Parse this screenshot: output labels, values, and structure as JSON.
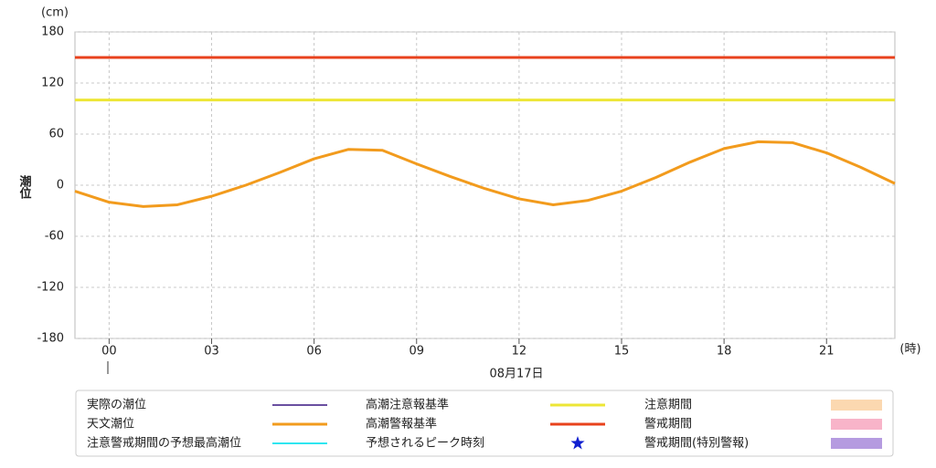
{
  "chart_data": {
    "type": "line",
    "y_label": "潮位",
    "y_unit": "(cm)",
    "x_unit": "(時)",
    "date_label": "08月17日",
    "x": [
      -1,
      0,
      1,
      2,
      3,
      4,
      5,
      6,
      7,
      8,
      9,
      10,
      11,
      12,
      13,
      14,
      15,
      16,
      17,
      18,
      19,
      20,
      21,
      22,
      23
    ],
    "series": [
      {
        "name": "天文潮位",
        "color": "#f29b1d",
        "values": [
          -7,
          -20,
          -25,
          -23,
          -13,
          0,
          15,
          31,
          42,
          41,
          25,
          10,
          -4,
          -16,
          -23,
          -18,
          -7,
          9,
          27,
          43,
          51,
          50,
          38,
          21,
          2
        ]
      }
    ],
    "thresholds": [
      {
        "name": "高潮注意報基準",
        "color": "#ede636",
        "value": 100
      },
      {
        "name": "高潮警報基準",
        "color": "#e8421c",
        "value": 150
      }
    ],
    "legend_extra": [
      {
        "name": "実際の潮位",
        "color": "#6a4fa0",
        "symbol": "line"
      },
      {
        "name": "注意警戒期間の予想最高潮位",
        "color": "#2ee6f0",
        "symbol": "line"
      },
      {
        "name": "予想されるピーク時刻",
        "color": "#1020d0",
        "symbol": "star"
      },
      {
        "name": "注意期間",
        "color": "#fbd8b0",
        "symbol": "rect"
      },
      {
        "name": "警戒期間",
        "color": "#f8b4c9",
        "symbol": "rect"
      },
      {
        "name": "警戒期間(特別警報)",
        "color": "#b59be0",
        "symbol": "rect"
      }
    ],
    "xlim": [
      -1,
      23
    ],
    "xticks": [
      {
        "value": 0,
        "label": "00"
      },
      {
        "value": 3,
        "label": "03"
      },
      {
        "value": 6,
        "label": "06"
      },
      {
        "value": 9,
        "label": "09"
      },
      {
        "value": 12,
        "label": "12"
      },
      {
        "value": 15,
        "label": "15"
      },
      {
        "value": 18,
        "label": "18"
      },
      {
        "value": 21,
        "label": "21"
      }
    ],
    "ylim": [
      -180,
      180
    ],
    "yticks": [
      -180,
      -120,
      -60,
      0,
      60,
      120,
      180
    ],
    "grid": true
  }
}
